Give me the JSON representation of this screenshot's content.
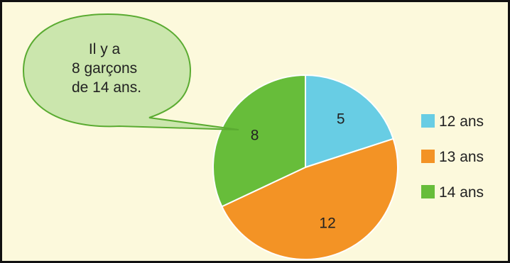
{
  "chart_data": {
    "type": "pie",
    "categories": [
      "12 ans",
      "13 ans",
      "14 ans"
    ],
    "values": [
      5,
      12,
      8
    ],
    "colors": [
      "#68cde4",
      "#f39325",
      "#67bd3a"
    ],
    "title": "",
    "legend_position": "right",
    "data_labels": [
      "5",
      "12",
      "8"
    ]
  },
  "callout": {
    "lines": [
      "Il y a",
      "8 garçons",
      "de 14 ans."
    ],
    "color": "#cbe6ad",
    "border_color": "#5aab31",
    "points_to": "14 ans"
  }
}
